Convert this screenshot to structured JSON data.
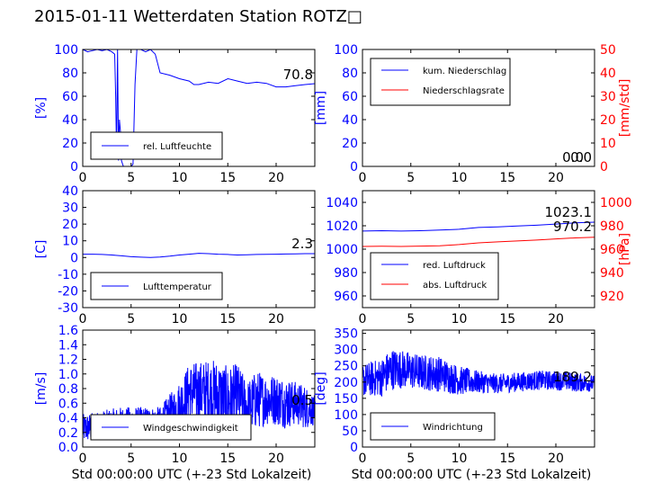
{
  "title": "2015-01-11 Wetterdaten Station ROTZ□",
  "colors": {
    "primary": "#0000ff",
    "secondary": "#ff0000",
    "axis": "#000000"
  },
  "chart_data": [
    {
      "type": "line",
      "id": "humidity",
      "ylabel": "[%]",
      "xlim": [
        0,
        24
      ],
      "ylim": [
        0,
        100
      ],
      "xticks": [
        0,
        5,
        10,
        15,
        20
      ],
      "yticks": [
        0,
        20,
        40,
        60,
        80,
        100
      ],
      "legend": {
        "placement": "lower-left"
      },
      "last_value_label": "70.8",
      "series": [
        {
          "name": "rel. Luftfeuchte",
          "color": "#0000ff",
          "x": [
            0,
            0.5,
            1,
            1.5,
            2,
            2.5,
            3,
            3.3,
            3.4,
            3.5,
            3.6,
            3.7,
            3.8,
            3.9,
            4.0,
            4.2,
            4.5,
            4.8,
            5.0,
            5.2,
            5.4,
            5.6,
            6.0,
            6.5,
            7.0,
            7.5,
            8,
            9,
            10,
            11,
            11.5,
            12,
            13,
            14,
            15,
            16,
            17,
            18,
            19,
            20,
            21,
            22,
            23,
            24
          ],
          "y": [
            100,
            98,
            99,
            100,
            99,
            100,
            98,
            96,
            60,
            10,
            100,
            5,
            40,
            30,
            5,
            0,
            0,
            0,
            0,
            2,
            70,
            100,
            100,
            98,
            100,
            96,
            80,
            78,
            75,
            73,
            70,
            70,
            72,
            71,
            75,
            73,
            71,
            72,
            71,
            68,
            68,
            69,
            70,
            70.8
          ]
        }
      ]
    },
    {
      "type": "line",
      "id": "precip",
      "ylabel": "[mm]",
      "ylabel2": "[mm/std]",
      "xlim": [
        0,
        24
      ],
      "ylim": [
        0,
        100
      ],
      "ylim2": [
        0,
        50
      ],
      "xticks": [
        0,
        5,
        10,
        15,
        20
      ],
      "yticks": [
        0,
        20,
        40,
        60,
        80,
        100
      ],
      "yticks2": [
        0,
        10,
        20,
        30,
        40,
        50
      ],
      "legend": {
        "placement": "top-left"
      },
      "last_value_label": "0.0",
      "last_value_label2": "0.0",
      "series": [
        {
          "name": "kum. Niederschlag",
          "color": "#0000ff",
          "axis": "left",
          "x": [
            0,
            24
          ],
          "y": [
            0,
            0
          ]
        },
        {
          "name": "Niederschlagsrate",
          "color": "#ff0000",
          "axis": "right",
          "x": [
            0,
            24
          ],
          "y": [
            0,
            0
          ]
        }
      ]
    },
    {
      "type": "line",
      "id": "temperature",
      "ylabel": "[C]",
      "xlim": [
        0,
        24
      ],
      "ylim": [
        -30,
        40
      ],
      "xticks": [
        0,
        5,
        10,
        15,
        20
      ],
      "yticks": [
        -30,
        -20,
        -10,
        0,
        10,
        20,
        30,
        40
      ],
      "legend": {
        "placement": "lower-left"
      },
      "last_value_label": "2.3",
      "series": [
        {
          "name": "Lufttemperatur",
          "color": "#0000ff",
          "x": [
            0,
            1,
            2,
            3,
            4,
            5,
            6,
            7,
            8,
            9,
            10,
            11,
            12,
            13,
            14,
            15,
            16,
            17,
            18,
            19,
            20,
            21,
            22,
            23,
            24
          ],
          "y": [
            2.0,
            2.0,
            1.8,
            1.5,
            1.0,
            0.5,
            0.2,
            0.0,
            0.3,
            0.8,
            1.5,
            2.0,
            2.5,
            2.3,
            2.0,
            1.8,
            1.5,
            1.6,
            1.8,
            1.9,
            2.0,
            2.1,
            2.2,
            2.3,
            2.3
          ]
        }
      ]
    },
    {
      "type": "line",
      "id": "pressure",
      "ylabel2": "[hPa]",
      "xlim": [
        0,
        24
      ],
      "ylim": [
        950,
        1050
      ],
      "ylim2": [
        910,
        1010
      ],
      "xticks": [
        0,
        5,
        10,
        15,
        20
      ],
      "yticks": [
        960,
        980,
        1000,
        1020,
        1040
      ],
      "yticks2": [
        920,
        940,
        960,
        980,
        1000
      ],
      "legend": {
        "placement": "lower-left"
      },
      "last_value_label": "1023.1",
      "last_value_label2": "970.2",
      "series": [
        {
          "name": "red. Luftdruck",
          "color": "#0000ff",
          "axis": "left",
          "x": [
            0,
            2,
            4,
            6,
            8,
            10,
            12,
            14,
            16,
            18,
            20,
            22,
            24
          ],
          "y": [
            1015.5,
            1015.8,
            1015.5,
            1015.8,
            1016.3,
            1017.0,
            1018.5,
            1019.0,
            1019.8,
            1020.5,
            1021.5,
            1022.5,
            1023.1
          ]
        },
        {
          "name": "abs. Luftdruck",
          "color": "#ff0000",
          "axis": "right",
          "x": [
            0,
            2,
            4,
            6,
            8,
            10,
            12,
            14,
            16,
            18,
            20,
            22,
            24
          ],
          "y": [
            962.3,
            962.5,
            962.3,
            962.6,
            962.9,
            963.9,
            965.4,
            966.2,
            967.0,
            967.8,
            968.8,
            969.6,
            970.2
          ]
        }
      ]
    },
    {
      "type": "line",
      "id": "windspeed",
      "ylabel": "[m/s]",
      "xlabel": "Std 00:00:00 UTC (+-23 Std Lokalzeit)",
      "xlim": [
        0,
        24
      ],
      "ylim": [
        0,
        1.6
      ],
      "xticks": [
        0,
        5,
        10,
        15,
        20
      ],
      "yticks": [
        0.0,
        0.2,
        0.4,
        0.6,
        0.8,
        1.0,
        1.2,
        1.4,
        1.6
      ],
      "legend": {
        "placement": "lower-left"
      },
      "last_value_label": "0.5",
      "series": [
        {
          "name": "Windgeschwindigkeit",
          "color": "#0000ff",
          "noisy": true,
          "x": [
            0,
            2,
            4,
            6,
            8,
            10,
            11,
            13,
            14,
            15,
            16,
            17,
            18,
            19,
            20,
            21,
            22,
            23,
            24
          ],
          "y": [
            0.25,
            0.3,
            0.35,
            0.35,
            0.35,
            0.55,
            0.75,
            0.75,
            0.7,
            0.65,
            0.7,
            0.55,
            0.65,
            0.65,
            0.65,
            0.6,
            0.6,
            0.55,
            0.5
          ],
          "spread": [
            0.2,
            0.2,
            0.2,
            0.2,
            0.2,
            0.35,
            0.4,
            0.45,
            0.5,
            0.45,
            0.45,
            0.35,
            0.4,
            0.35,
            0.35,
            0.35,
            0.3,
            0.3,
            0.2
          ]
        }
      ]
    },
    {
      "type": "line",
      "id": "winddir",
      "ylabel": "[deg]",
      "xlabel": "Std 00:00:00 UTC (+-23 Std Lokalzeit)",
      "xlim": [
        0,
        24
      ],
      "ylim": [
        0,
        360
      ],
      "xticks": [
        0,
        5,
        10,
        15,
        20
      ],
      "yticks": [
        0,
        50,
        100,
        150,
        200,
        250,
        300,
        350
      ],
      "legend": {
        "placement": "lower-left"
      },
      "last_value_label": "189.2",
      "series": [
        {
          "name": "Windrichtung",
          "color": "#0000ff",
          "noisy": true,
          "x": [
            0,
            2,
            3,
            4,
            6,
            8,
            10,
            12,
            14,
            16,
            18,
            20,
            22,
            24
          ],
          "y": [
            205,
            215,
            240,
            240,
            230,
            225,
            205,
            200,
            195,
            200,
            205,
            205,
            200,
            195
          ],
          "spread": [
            50,
            60,
            65,
            60,
            55,
            55,
            45,
            35,
            30,
            30,
            30,
            30,
            30,
            25
          ]
        }
      ]
    }
  ]
}
